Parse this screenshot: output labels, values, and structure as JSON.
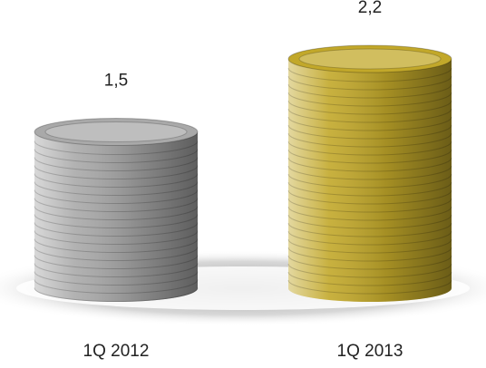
{
  "chart_data": {
    "type": "bar",
    "categories": [
      "1Q 2012",
      "1Q 2013"
    ],
    "values": [
      1.5,
      2.2
    ],
    "value_labels": [
      "1,5",
      "2,2"
    ],
    "colors": [
      "#a9a9a9",
      "#c2a82a"
    ]
  }
}
